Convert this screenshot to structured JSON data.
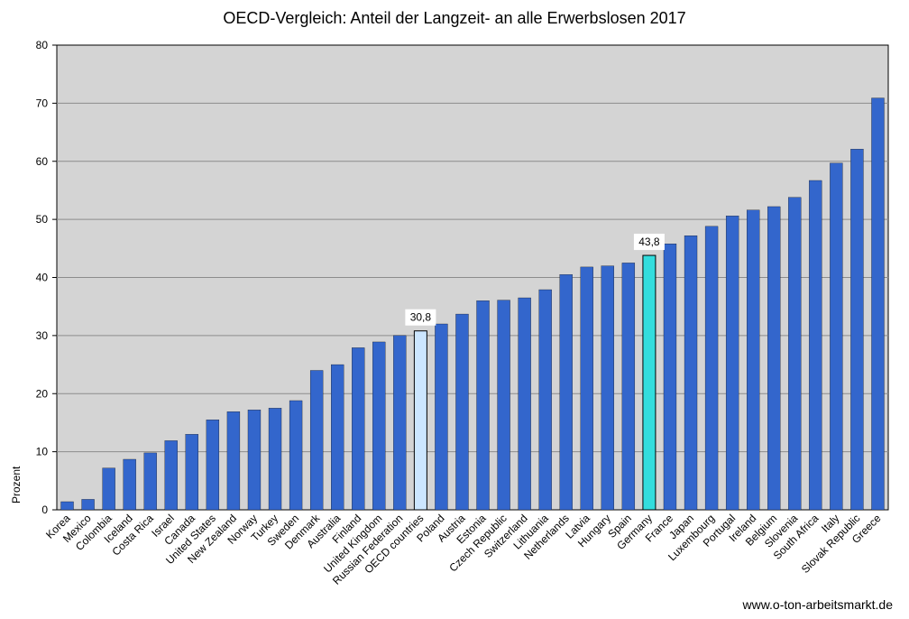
{
  "chart_data": {
    "type": "bar",
    "title": "OECD-Vergleich: Anteil der Langzeit- an alle Erwerbslosen 2017",
    "ylabel": "Prozent",
    "xlabel": "",
    "ylim": [
      0,
      80
    ],
    "yticks": [
      0,
      10,
      20,
      30,
      40,
      50,
      60,
      70,
      80
    ],
    "grid": true,
    "legend": "none",
    "categories": [
      "Korea",
      "Mexico",
      "Colombia",
      "Iceland",
      "Costa Rica",
      "Israel",
      "Canada",
      "United States",
      "New Zealand",
      "Norway",
      "Turkey",
      "Sweden",
      "Denmark",
      "Australia",
      "Finland",
      "United Kingdom",
      "Russian Federation",
      "OECD countries",
      "Poland",
      "Austria",
      "Estonia",
      "Czech Republic",
      "Switzerland",
      "Lithuania",
      "Netherlands",
      "Latvia",
      "Hungary",
      "Spain",
      "Germany",
      "France",
      "Japan",
      "Luxembourg",
      "Portugal",
      "Ireland",
      "Belgium",
      "Slovenia",
      "South Africa",
      "Italy",
      "Slovak Republic",
      "Greece"
    ],
    "values": [
      1.4,
      1.8,
      7.2,
      8.7,
      9.8,
      11.9,
      13.0,
      15.5,
      16.9,
      17.2,
      17.5,
      18.8,
      24.0,
      25.0,
      27.9,
      28.9,
      30.0,
      30.8,
      32.0,
      33.7,
      36.0,
      36.1,
      36.5,
      37.9,
      40.5,
      41.8,
      42.0,
      42.5,
      43.8,
      45.8,
      47.2,
      48.8,
      50.6,
      51.6,
      52.2,
      53.8,
      56.7,
      59.7,
      62.1,
      70.9
    ],
    "highlights": [
      {
        "category": "OECD countries",
        "label": "30,8",
        "color": "#cce6ff"
      },
      {
        "category": "Germany",
        "label": "43,8",
        "color": "#33dddd"
      }
    ],
    "colors": {
      "bar": "#3366cc",
      "plot_bg": "#d4d4d4",
      "grid": "#8c8c8c"
    }
  },
  "source": "www.o-ton-arbeitsmarkt.de"
}
